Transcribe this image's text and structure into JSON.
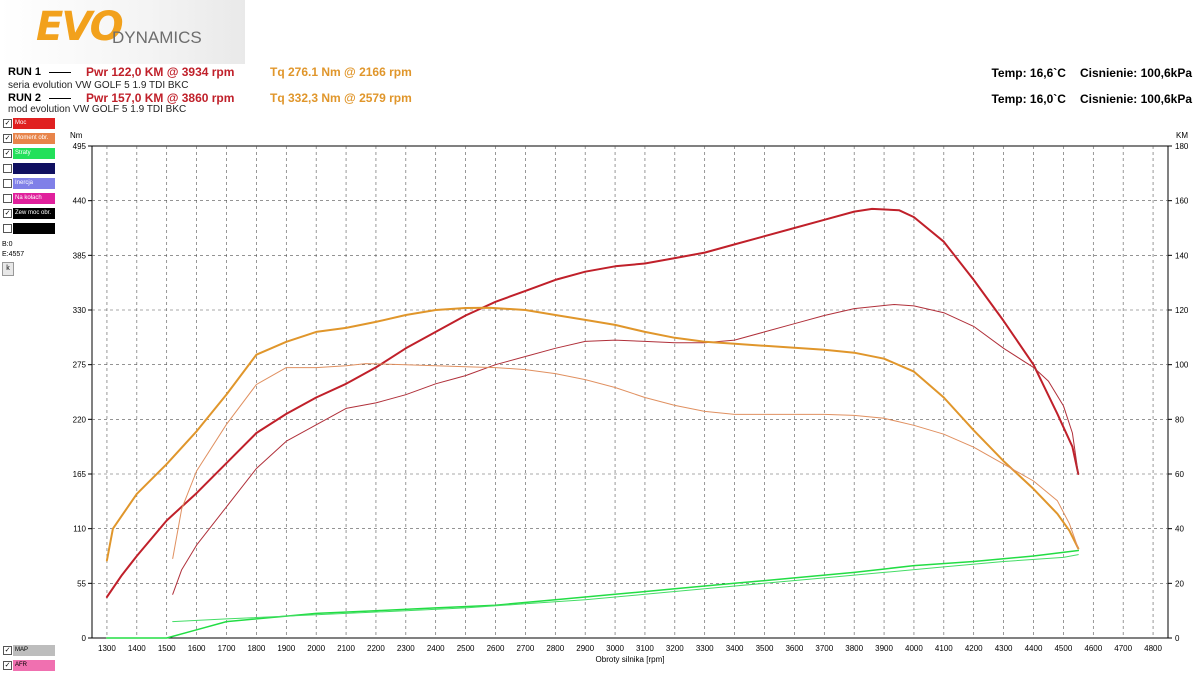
{
  "logo": {
    "mark": "EVO",
    "sub": "DYNAMICS"
  },
  "runs": [
    {
      "label": "RUN 1",
      "pwr": "Pwr  122,0 KM @ 3934 rpm",
      "tq": "Tq 276.1 Nm @ 2166 rpm",
      "desc": "seria evolution VW GOLF 5 1.9 TDI BKC",
      "temp": "Temp: 16,6`C",
      "pressure": "Cisnienie: 100,6kPa"
    },
    {
      "label": "RUN 2",
      "pwr": "Pwr  157,0 KM @ 3860 rpm",
      "tq": "Tq 332,3 Nm @ 2579 rpm",
      "desc": "mod evolution VW GOLF 5 1.9 TDI BKC",
      "temp": "Temp: 16,0`C",
      "pressure": "Cisnienie: 100,6kPa"
    }
  ],
  "legend": {
    "items": [
      {
        "label": "Moc",
        "color": "#e02020",
        "checked": true
      },
      {
        "label": "Moment obr.",
        "color": "#e8844a",
        "checked": true
      },
      {
        "label": "Straty",
        "color": "#22e05a",
        "checked": true
      },
      {
        "label": "",
        "color": "#101060",
        "checked": false
      },
      {
        "label": "Inercja",
        "color": "#8080e8",
        "checked": false
      },
      {
        "label": "Na kołach",
        "color": "#e0209c",
        "checked": false
      },
      {
        "label": "Zew moc obr.",
        "color": "#000000",
        "checked": true
      },
      {
        "label": "",
        "color": "#000000",
        "checked": false
      }
    ],
    "b_value": "B:0",
    "e_value": "E:4557",
    "k_button": "k",
    "map_label": "MAP",
    "afr_label": "AFR"
  },
  "chart_data": {
    "type": "line",
    "xlabel": "Obroty silnika [rpm]",
    "ylabel_left": "Nm",
    "ylabel_right": "KM",
    "xlim": [
      1250,
      4850
    ],
    "ylim_left": [
      0,
      495
    ],
    "ylim_right": [
      0,
      180
    ],
    "x_ticks": [
      1300,
      1400,
      1500,
      1600,
      1700,
      1800,
      1900,
      2000,
      2100,
      2200,
      2300,
      2400,
      2500,
      2600,
      2700,
      2800,
      2900,
      3000,
      3100,
      3200,
      3300,
      3400,
      3500,
      3600,
      3700,
      3800,
      3900,
      4000,
      4100,
      4200,
      4300,
      4400,
      4500,
      4600,
      4700,
      4800
    ],
    "y_ticks_left": [
      0,
      55,
      110,
      165,
      220,
      275,
      330,
      385,
      440,
      495
    ],
    "y_ticks_right": [
      0,
      20,
      40,
      60,
      80,
      100,
      120,
      140,
      160,
      180
    ],
    "grid": true,
    "series": [
      {
        "name": "Pwr RUN 2",
        "axis": "right",
        "color": "#c0202a",
        "width": 2,
        "points": [
          [
            1300,
            15
          ],
          [
            1350,
            23
          ],
          [
            1400,
            30
          ],
          [
            1500,
            43
          ],
          [
            1600,
            53
          ],
          [
            1700,
            64
          ],
          [
            1800,
            75
          ],
          [
            1900,
            82
          ],
          [
            2000,
            88
          ],
          [
            2100,
            93
          ],
          [
            2200,
            99
          ],
          [
            2300,
            106
          ],
          [
            2400,
            112
          ],
          [
            2500,
            118
          ],
          [
            2600,
            123
          ],
          [
            2700,
            127
          ],
          [
            2800,
            131
          ],
          [
            2900,
            134
          ],
          [
            3000,
            136
          ],
          [
            3100,
            137
          ],
          [
            3200,
            139
          ],
          [
            3300,
            141
          ],
          [
            3400,
            144
          ],
          [
            3500,
            147
          ],
          [
            3600,
            150
          ],
          [
            3700,
            153
          ],
          [
            3800,
            156
          ],
          [
            3860,
            157
          ],
          [
            3950,
            156.5
          ],
          [
            4000,
            154
          ],
          [
            4100,
            145
          ],
          [
            4200,
            131
          ],
          [
            4300,
            116
          ],
          [
            4400,
            100
          ],
          [
            4480,
            82
          ],
          [
            4530,
            70
          ],
          [
            4550,
            60
          ]
        ]
      },
      {
        "name": "Pwr RUN 1",
        "axis": "right",
        "color": "#b0303a",
        "width": 1,
        "points": [
          [
            1520,
            16
          ],
          [
            1550,
            25
          ],
          [
            1600,
            34
          ],
          [
            1700,
            48
          ],
          [
            1800,
            62
          ],
          [
            1900,
            72
          ],
          [
            2000,
            78
          ],
          [
            2100,
            84
          ],
          [
            2200,
            86
          ],
          [
            2300,
            89
          ],
          [
            2400,
            93
          ],
          [
            2500,
            96
          ],
          [
            2600,
            100
          ],
          [
            2700,
            103
          ],
          [
            2800,
            106
          ],
          [
            2900,
            108.5
          ],
          [
            3000,
            109
          ],
          [
            3100,
            108.5
          ],
          [
            3200,
            108
          ],
          [
            3300,
            108
          ],
          [
            3400,
            109
          ],
          [
            3500,
            112
          ],
          [
            3600,
            115
          ],
          [
            3700,
            118
          ],
          [
            3800,
            120.5
          ],
          [
            3934,
            122
          ],
          [
            4000,
            121.5
          ],
          [
            4100,
            119
          ],
          [
            4200,
            114
          ],
          [
            4300,
            106
          ],
          [
            4400,
            99
          ],
          [
            4450,
            94
          ],
          [
            4500,
            85
          ],
          [
            4530,
            75
          ],
          [
            4550,
            60
          ]
        ]
      },
      {
        "name": "Tq RUN 2",
        "axis": "left",
        "color": "#e0962b",
        "width": 2,
        "points": [
          [
            1300,
            78
          ],
          [
            1320,
            110
          ],
          [
            1400,
            145
          ],
          [
            1500,
            175
          ],
          [
            1600,
            208
          ],
          [
            1700,
            245
          ],
          [
            1800,
            285
          ],
          [
            1900,
            298
          ],
          [
            2000,
            308
          ],
          [
            2100,
            312
          ],
          [
            2200,
            318
          ],
          [
            2300,
            325
          ],
          [
            2400,
            330
          ],
          [
            2500,
            332
          ],
          [
            2579,
            332.3
          ],
          [
            2700,
            330
          ],
          [
            2800,
            325
          ],
          [
            2900,
            320
          ],
          [
            3000,
            315
          ],
          [
            3100,
            308
          ],
          [
            3200,
            302
          ],
          [
            3300,
            298
          ],
          [
            3400,
            296
          ],
          [
            3500,
            294
          ],
          [
            3600,
            292
          ],
          [
            3700,
            290
          ],
          [
            3800,
            287
          ],
          [
            3900,
            281
          ],
          [
            4000,
            268
          ],
          [
            4100,
            242
          ],
          [
            4200,
            209
          ],
          [
            4300,
            178
          ],
          [
            4400,
            150
          ],
          [
            4480,
            125
          ],
          [
            4520,
            108
          ],
          [
            4550,
            90
          ]
        ]
      },
      {
        "name": "Tq RUN 1",
        "axis": "left",
        "color": "#e09060",
        "width": 1,
        "points": [
          [
            1520,
            80
          ],
          [
            1550,
            130
          ],
          [
            1600,
            168
          ],
          [
            1700,
            215
          ],
          [
            1800,
            255
          ],
          [
            1900,
            272
          ],
          [
            2000,
            272
          ],
          [
            2100,
            274
          ],
          [
            2166,
            276.1
          ],
          [
            2300,
            275
          ],
          [
            2400,
            274
          ],
          [
            2500,
            273
          ],
          [
            2600,
            272
          ],
          [
            2700,
            270
          ],
          [
            2800,
            266
          ],
          [
            2900,
            260
          ],
          [
            3000,
            252
          ],
          [
            3100,
            242
          ],
          [
            3200,
            234
          ],
          [
            3300,
            228
          ],
          [
            3400,
            225
          ],
          [
            3500,
            225
          ],
          [
            3600,
            225
          ],
          [
            3700,
            225
          ],
          [
            3800,
            224
          ],
          [
            3900,
            221
          ],
          [
            4000,
            214
          ],
          [
            4100,
            205
          ],
          [
            4200,
            192
          ],
          [
            4300,
            175
          ],
          [
            4400,
            158
          ],
          [
            4480,
            138
          ],
          [
            4520,
            115
          ],
          [
            4550,
            90
          ]
        ]
      },
      {
        "name": "Straty RUN 2",
        "axis": "right",
        "color": "#22dd44",
        "width": 1.5,
        "points": [
          [
            1300,
            0
          ],
          [
            1500,
            0
          ],
          [
            1600,
            3
          ],
          [
            1700,
            6
          ],
          [
            1800,
            7
          ],
          [
            2000,
            9
          ],
          [
            2200,
            10
          ],
          [
            2400,
            11
          ],
          [
            2600,
            12
          ],
          [
            2800,
            14
          ],
          [
            3000,
            16
          ],
          [
            3200,
            18
          ],
          [
            3400,
            20
          ],
          [
            3600,
            22
          ],
          [
            3800,
            24
          ],
          [
            4000,
            26.5
          ],
          [
            4200,
            28
          ],
          [
            4400,
            30
          ],
          [
            4550,
            32
          ]
        ]
      },
      {
        "name": "Straty RUN 1",
        "axis": "right",
        "color": "#44dd66",
        "width": 1,
        "points": [
          [
            1520,
            6
          ],
          [
            1700,
            7
          ],
          [
            1900,
            8
          ],
          [
            2100,
            9
          ],
          [
            2300,
            10
          ],
          [
            2500,
            11
          ],
          [
            2700,
            12.5
          ],
          [
            2900,
            14
          ],
          [
            3100,
            16
          ],
          [
            3300,
            18
          ],
          [
            3500,
            20
          ],
          [
            3700,
            22
          ],
          [
            3900,
            24
          ],
          [
            4100,
            26
          ],
          [
            4300,
            28
          ],
          [
            4500,
            29.5
          ],
          [
            4550,
            30.5
          ]
        ]
      }
    ]
  }
}
